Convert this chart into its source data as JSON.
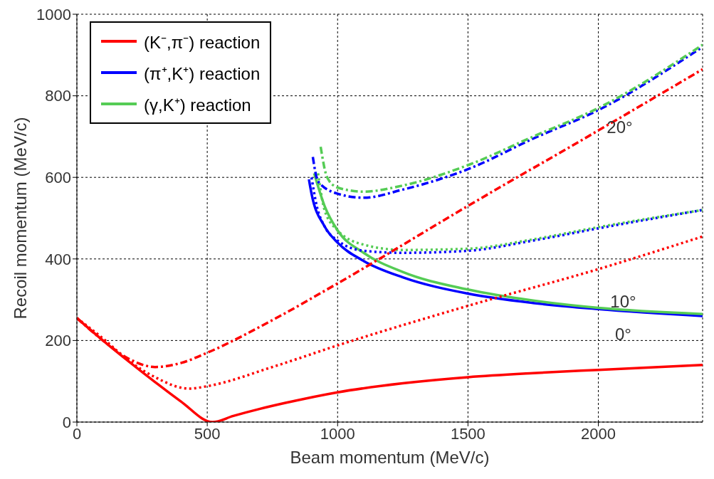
{
  "chart_data": {
    "type": "line",
    "xlabel": "Beam momentum (MeV/c)",
    "ylabel": "Recoil momentum (MeV/c)",
    "xlim": [
      0,
      2400
    ],
    "xticks": [
      0,
      500,
      1000,
      1500,
      2000
    ],
    "ylim": [
      0,
      1000
    ],
    "yticks": [
      0,
      200,
      400,
      600,
      800,
      1000
    ],
    "grid": true,
    "legend": "top left",
    "series": [
      {
        "name": "(K⁻,π⁻) reaction",
        "color": "#ff0000",
        "line_style": "solid",
        "x": [
          0,
          100,
          200,
          300,
          400,
          520,
          600,
          700,
          800,
          1000,
          1250,
          1500,
          1750,
          2000,
          2400
        ],
        "values": [
          255,
          200,
          148,
          98,
          50,
          0,
          15,
          32,
          47,
          73,
          95,
          110,
          120,
          128,
          140
        ]
      },
      {
        "name": "(π⁺,K⁺) reaction",
        "color": "#0000ff",
        "line_style": "solid",
        "x": [
          890,
          900,
          950,
          1000,
          1100,
          1250,
          1500,
          1750,
          2000,
          2400
        ],
        "values": [
          595,
          560,
          480,
          440,
          395,
          355,
          315,
          292,
          277,
          260
        ]
      },
      {
        "name": "(γ,K⁺) reaction",
        "color": "#55cc55",
        "line_style": "solid",
        "x": [
          910,
          950,
          1000,
          1100,
          1250,
          1500,
          1750,
          2000,
          2400
        ],
        "values": [
          610,
          530,
          470,
          415,
          368,
          325,
          298,
          280,
          265
        ]
      },
      {
        "color": "#ff0000",
        "line_style": "dotted",
        "x": [
          0,
          100,
          200,
          300,
          430,
          500,
          750,
          1000,
          1500,
          2000,
          2400
        ],
        "values": [
          255,
          205,
          150,
          110,
          82,
          88,
          135,
          188,
          285,
          375,
          455
        ]
      },
      {
        "color": "#0000ff",
        "line_style": "dotted",
        "x": [
          900,
          920,
          950,
          1000,
          1100,
          1250,
          1500,
          1750,
          2000,
          2400
        ],
        "values": [
          600,
          530,
          480,
          445,
          420,
          415,
          420,
          445,
          475,
          520
        ]
      },
      {
        "color": "#55cc55",
        "line_style": "dotted",
        "x": [
          925,
          950,
          1000,
          1100,
          1250,
          1500,
          1750,
          2000,
          2400
        ],
        "values": [
          610,
          520,
          470,
          435,
          422,
          425,
          448,
          478,
          520
        ]
      },
      {
        "color": "#ff0000",
        "line_style": "dashdot",
        "x": [
          0,
          100,
          200,
          300,
          400,
          500,
          750,
          1000,
          1500,
          2000,
          2400
        ],
        "values": [
          255,
          200,
          155,
          135,
          145,
          170,
          250,
          340,
          530,
          715,
          865
        ]
      },
      {
        "color": "#0000ff",
        "line_style": "dashdot",
        "x": [
          905,
          925,
          1000,
          1100,
          1250,
          1500,
          1750,
          2000,
          2400
        ],
        "values": [
          650,
          590,
          560,
          550,
          570,
          620,
          695,
          765,
          920
        ]
      },
      {
        "color": "#55cc55",
        "line_style": "dashdot",
        "x": [
          935,
          960,
          1000,
          1100,
          1250,
          1500,
          1750,
          2000,
          2400
        ],
        "values": [
          675,
          600,
          575,
          565,
          580,
          630,
          700,
          770,
          925
        ]
      }
    ],
    "annotations": [
      "0°",
      "10°",
      "20°"
    ]
  }
}
